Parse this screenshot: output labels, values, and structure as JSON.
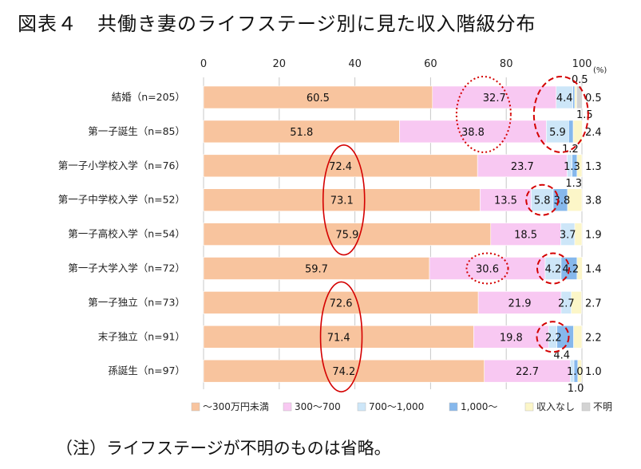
{
  "title": "図表４　共働き妻のライフステージ別に見た収入階級分布",
  "note": "（注）ライフステージが不明のものは省略。",
  "chart_data": {
    "type": "bar",
    "orientation": "horizontal",
    "stacked": true,
    "unit_label": "(%)",
    "xlim": [
      0,
      100
    ],
    "xticks": [
      "0",
      "20",
      "40",
      "60",
      "80",
      "100"
    ],
    "grid": true,
    "legend_position": "bottom",
    "categories": [
      "結婚（n=205）",
      "第一子誕生（n=85）",
      "第一子小学校入学（n=76）",
      "第一子中学校入学（n=52）",
      "第一子高校入学（n=54）",
      "第一子大学入学（n=72）",
      "第一子独立（n=73）",
      "末子独立（n=91）",
      "孫誕生（n=97）"
    ],
    "series": [
      {
        "name": "～300万円未満",
        "color": "#F8C49E",
        "values": [
          60.5,
          51.8,
          72.4,
          73.1,
          75.9,
          59.7,
          72.6,
          71.4,
          74.2
        ]
      },
      {
        "name": "300～700",
        "color": "#F8C8F2",
        "values": [
          32.7,
          38.8,
          23.7,
          13.5,
          18.5,
          30.6,
          21.9,
          19.8,
          22.7
        ]
      },
      {
        "name": "700～1,000",
        "color": "#CDE6F8",
        "values": [
          4.4,
          5.9,
          1.3,
          5.8,
          3.7,
          4.2,
          2.7,
          2.2,
          1.0
        ]
      },
      {
        "name": "1,000～",
        "color": "#86B8EC",
        "values": [
          0.5,
          1.2,
          1.3,
          3.8,
          0.0,
          4.2,
          0.0,
          4.4,
          1.0
        ]
      },
      {
        "name": "収入なし",
        "color": "#FCF6C8",
        "values": [
          0.5,
          2.4,
          1.3,
          3.8,
          1.9,
          1.4,
          2.7,
          2.2,
          1.0
        ]
      },
      {
        "name": "不明",
        "color": "#D3D3D3",
        "values": [
          1.5,
          0.0,
          0.0,
          0.0,
          0.0,
          0.0,
          0.0,
          0.0,
          0.0
        ]
      }
    ],
    "data_labels": [
      [
        "60.5",
        "32.7",
        "4.4",
        "0.5",
        "0.5",
        "1.5"
      ],
      [
        "51.8",
        "38.8",
        "5.9",
        "1.2",
        "2.4",
        ""
      ],
      [
        "72.4",
        "23.7",
        "1.3",
        "1.3",
        "1.3",
        ""
      ],
      [
        "73.1",
        "13.5",
        "5.8",
        "3.8",
        "3.8",
        ""
      ],
      [
        "75.9",
        "18.5",
        "3.7",
        "",
        "1.9",
        ""
      ],
      [
        "59.7",
        "30.6",
        "4.2",
        "4.2",
        "1.4",
        ""
      ],
      [
        "72.6",
        "21.9",
        "2.7",
        "",
        "2.7",
        ""
      ],
      [
        "71.4",
        "19.8",
        "2.2",
        "4.4",
        "2.2",
        ""
      ],
      [
        "74.2",
        "22.7",
        "1.0",
        "1.0",
        "1.0",
        ""
      ]
    ],
    "annotations": {
      "red_solid_ellipses": [
        {
          "series": 0,
          "rows": [
            2,
            3,
            4
          ]
        },
        {
          "series": 0,
          "rows": [
            6,
            7,
            8
          ]
        }
      ],
      "red_dotted_ellipses": [
        {
          "series": 1,
          "rows": [
            0,
            1
          ]
        },
        {
          "series": 1,
          "rows": [
            5
          ]
        }
      ],
      "red_dashed_ellipses": [
        {
          "series": 2,
          "rows": [
            0,
            1
          ]
        },
        {
          "series": 2,
          "rows": [
            3
          ]
        },
        {
          "series": 2,
          "rows": [
            5
          ]
        },
        {
          "series": 2,
          "rows": [
            7
          ]
        }
      ]
    }
  }
}
